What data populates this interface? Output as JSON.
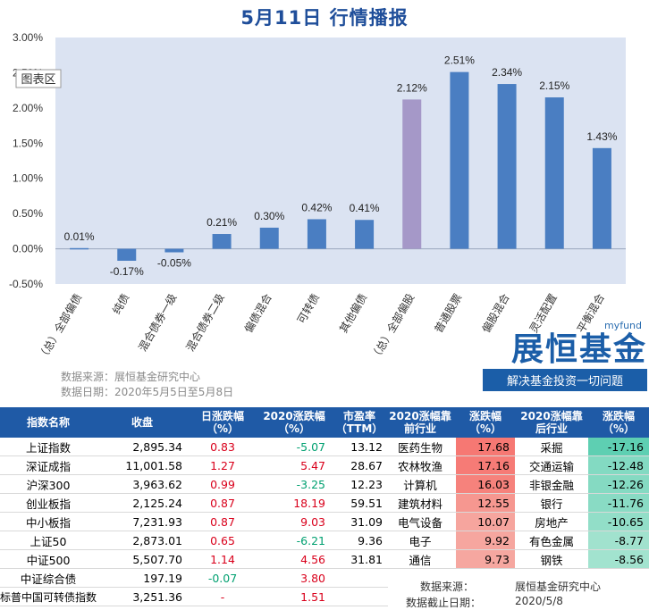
{
  "title": "5月11日  行情播报",
  "chart_data": {
    "type": "bar",
    "categories": [
      "（总）全部偏债",
      "纯债",
      "混合债券一级",
      "混合债券二级",
      "偏债混合",
      "可转债",
      "其他偏债",
      "（总）全部偏股",
      "普通股票",
      "偏股混合",
      "灵活配置",
      "平衡混合"
    ],
    "values": [
      0.01,
      -0.17,
      -0.05,
      0.21,
      0.3,
      0.42,
      0.41,
      2.12,
      2.51,
      2.34,
      2.15,
      1.43
    ],
    "data_labels": [
      "0.01%",
      "-0.17%",
      "-0.05%",
      "0.21%",
      "0.30%",
      "0.42%",
      "0.41%",
      "2.12%",
      "2.51%",
      "2.34%",
      "2.15%",
      "1.43%"
    ],
    "ylim": [
      -0.5,
      3.0
    ],
    "yticks": [
      "-0.50%",
      "0.00%",
      "0.50%",
      "1.00%",
      "1.50%",
      "2.00%",
      "2.50%",
      "3.00%"
    ],
    "yticks_values": [
      -0.5,
      0,
      0.5,
      1.0,
      1.5,
      2.0,
      2.5,
      3.0
    ],
    "highlight_index": 7,
    "colors": {
      "bar": "#4a7ec2",
      "highlight": "#a598c8",
      "plot_bg": "#dbe3f2"
    },
    "grid": false,
    "area_tag": "图表区"
  },
  "source_line1": "数据来源：展恒基金研究中心",
  "source_line2": "数据日期：2020年5月5日至5月8日",
  "logo": {
    "top": "myfund",
    "main": "展恒基金",
    "sub": "解决基金投资一切问题"
  },
  "left_table": {
    "headers": [
      "指数名称",
      "收盘",
      "日涨跌幅（%）",
      "2020涨跌幅（%）",
      "市盈率（TTM）"
    ],
    "rows": [
      [
        "上证指数",
        "2,895.34",
        "0.83",
        "-5.07",
        "13.12"
      ],
      [
        "深证成指",
        "11,001.58",
        "1.27",
        "5.47",
        "28.67"
      ],
      [
        "沪深300",
        "3,963.62",
        "0.99",
        "-3.25",
        "12.23"
      ],
      [
        "创业板指",
        "2,125.24",
        "0.87",
        "18.19",
        "59.51"
      ],
      [
        "中小板指",
        "7,231.93",
        "0.87",
        "9.03",
        "31.09"
      ],
      [
        "上证50",
        "2,873.01",
        "0.65",
        "-6.21",
        "9.36"
      ],
      [
        "中证500",
        "5,507.70",
        "1.14",
        "4.56",
        "31.81"
      ],
      [
        "中证综合债",
        "197.19",
        "-0.07",
        "3.80",
        ""
      ],
      [
        "标普中国可转债指数",
        "3,251.36",
        "-",
        "1.51",
        ""
      ]
    ]
  },
  "right_table": {
    "headers": [
      "2020涨幅靠前行业",
      "涨跌幅（%）",
      "2020涨幅靠后行业",
      "涨跌幅（%）"
    ],
    "rows": [
      [
        "医药生物",
        "17.68",
        "采掘",
        "-17.16"
      ],
      [
        "农林牧渔",
        "17.16",
        "交通运输",
        "-12.48"
      ],
      [
        "计算机",
        "16.03",
        "非银金融",
        "-12.26"
      ],
      [
        "建筑材料",
        "12.55",
        "银行",
        "-11.76"
      ],
      [
        "电气设备",
        "10.07",
        "房地产",
        "-10.65"
      ],
      [
        "电子",
        "9.92",
        "有色金属",
        "-8.77"
      ],
      [
        "通信",
        "9.73",
        "钢铁",
        "-8.56"
      ]
    ],
    "footer_source_label": "数据来源：",
    "footer_source_value": "展恒基金研究中心",
    "footer_date_label": "数据截止日期：",
    "footer_date_value": "2020/5/8"
  }
}
